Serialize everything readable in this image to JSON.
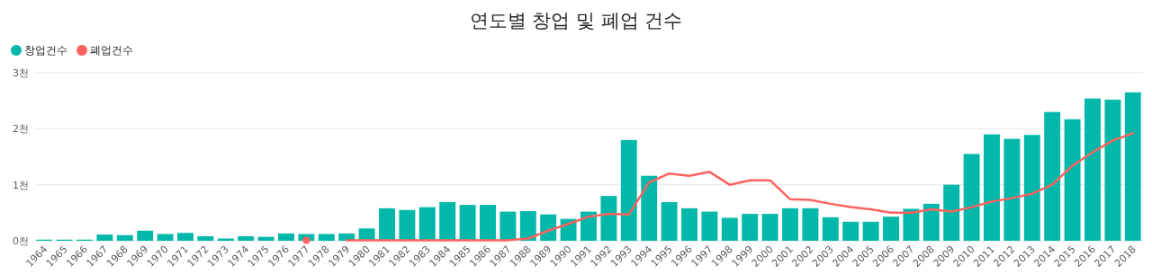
{
  "chart_data": {
    "type": "bar",
    "title": "연도별 창업 및 폐업 건수",
    "categories": [
      "1964",
      "1965",
      "1966",
      "1967",
      "1968",
      "1969",
      "1970",
      "1971",
      "1972",
      "1973",
      "1974",
      "1975",
      "1976",
      "1977",
      "1978",
      "1979",
      "1980",
      "1981",
      "1982",
      "1983",
      "1984",
      "1985",
      "1986",
      "1987",
      "1988",
      "1989",
      "1990",
      "1991",
      "1992",
      "1993",
      "1994",
      "1995",
      "1996",
      "1997",
      "1998",
      "1999",
      "2000",
      "2001",
      "2002",
      "2003",
      "2004",
      "2005",
      "2006",
      "2007",
      "2008",
      "2009",
      "2010",
      "2011",
      "2012",
      "2013",
      "2014",
      "2015",
      "2016",
      "2017",
      "2018"
    ],
    "series": [
      {
        "name": "창업건수",
        "color": "#01b8aa",
        "values": [
          0.02,
          0.02,
          0.02,
          0.11,
          0.1,
          0.18,
          0.12,
          0.14,
          0.08,
          0.04,
          0.08,
          0.07,
          0.13,
          0.12,
          0.12,
          0.13,
          0.22,
          0.58,
          0.55,
          0.6,
          0.69,
          0.64,
          0.64,
          0.52,
          0.53,
          0.47,
          0.39,
          0.52,
          0.8,
          1.8,
          1.16,
          0.69,
          0.58,
          0.52,
          0.41,
          0.48,
          0.48,
          0.58,
          0.58,
          0.42,
          0.34,
          0.34,
          0.43,
          0.57,
          0.66,
          1.0,
          1.55,
          1.9,
          1.82,
          1.89,
          2.3,
          2.17,
          2.54,
          2.52,
          2.65
        ]
      },
      {
        "name": "폐업건수",
        "type": "line",
        "color": "#fd625e",
        "values": [
          null,
          null,
          null,
          null,
          null,
          null,
          null,
          null,
          null,
          null,
          null,
          null,
          null,
          0.01,
          null,
          0.01,
          0.01,
          0.01,
          0.01,
          0.01,
          0.01,
          0.01,
          0.01,
          0.01,
          0.04,
          0.18,
          0.3,
          0.43,
          0.48,
          0.47,
          1.04,
          1.2,
          1.16,
          1.23,
          1.0,
          1.08,
          1.08,
          0.74,
          0.73,
          0.66,
          0.6,
          0.56,
          0.5,
          0.5,
          0.56,
          0.52,
          0.6,
          0.7,
          0.76,
          0.84,
          1.0,
          1.34,
          1.58,
          1.79,
          1.92
        ]
      }
    ],
    "ylim": [
      0,
      3
    ],
    "yticks": [
      {
        "value": 0,
        "label": "0천"
      },
      {
        "value": 1,
        "label": "1천"
      },
      {
        "value": 2,
        "label": "2천"
      },
      {
        "value": 3,
        "label": "3천"
      }
    ],
    "grid": "y",
    "legend": "top left"
  }
}
